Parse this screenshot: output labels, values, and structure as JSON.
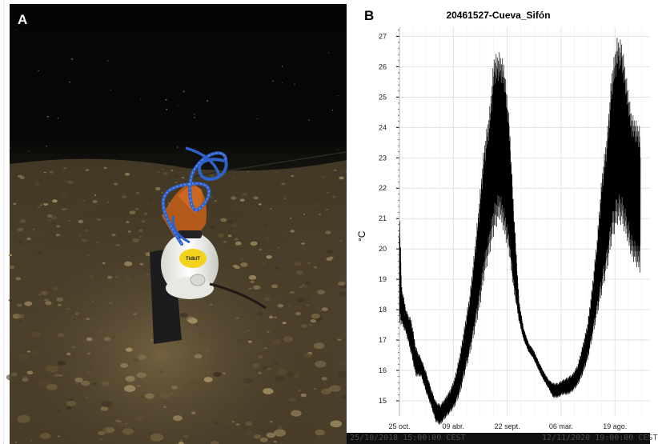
{
  "figure": {
    "panel_a": {
      "letter": "A",
      "logger_label": "TidbiT"
    },
    "panel_b": {
      "letter": "B",
      "footer_left": "25/10/2018 15:00:00 CEST",
      "footer_right": "12/11/2020 19:00:00 CEST"
    }
  },
  "chart_data": {
    "type": "line",
    "title": "20461527-Cueva_Sifón",
    "xlabel": "",
    "ylabel": "°C",
    "x_ticks": [
      "25 oct.",
      "09 abr.",
      "22 sept.",
      "06 mar.",
      "19 ago."
    ],
    "x_range": [
      "2018-10-25",
      "2020-11-12"
    ],
    "ylim": [
      14.5,
      27.3
    ],
    "y_ticks": [
      15,
      16,
      17,
      18,
      19,
      20,
      21,
      22,
      23,
      24,
      25,
      26,
      27
    ],
    "grid": true,
    "series": [
      {
        "color": "#000000",
        "x": [
          "2018-10-25",
          "2018-11-01",
          "2018-11-15",
          "2018-12-01",
          "2018-12-15",
          "2019-01-01",
          "2019-01-15",
          "2019-02-01",
          "2019-02-15",
          "2019-03-01",
          "2019-03-15",
          "2019-04-01",
          "2019-04-15",
          "2019-05-01",
          "2019-05-15",
          "2019-06-01",
          "2019-06-15",
          "2019-07-01",
          "2019-07-15",
          "2019-08-01",
          "2019-08-15",
          "2019-09-01",
          "2019-09-15",
          "2019-10-01",
          "2019-10-15",
          "2019-11-01",
          "2019-11-15",
          "2019-12-01",
          "2019-12-15",
          "2020-01-01",
          "2020-01-15",
          "2020-02-01",
          "2020-02-15",
          "2020-03-01",
          "2020-03-15",
          "2020-04-01",
          "2020-04-15",
          "2020-05-01",
          "2020-05-15",
          "2020-06-01",
          "2020-06-15",
          "2020-07-01",
          "2020-07-15",
          "2020-08-01",
          "2020-08-15",
          "2020-09-01",
          "2020-09-15",
          "2020-10-01",
          "2020-10-15",
          "2020-11-12"
        ],
        "y_low": [
          17.5,
          17.5,
          17.2,
          16.5,
          15.8,
          15.8,
          15.3,
          14.8,
          14.3,
          14.2,
          14.4,
          14.6,
          14.8,
          15.2,
          15.8,
          16.5,
          17.2,
          18.0,
          19.0,
          19.8,
          20.5,
          21.0,
          20.5,
          19.8,
          18.6,
          17.6,
          17.0,
          16.6,
          16.4,
          16.0,
          15.7,
          15.4,
          15.1,
          15.1,
          15.2,
          15.2,
          15.3,
          15.5,
          15.8,
          16.3,
          17.0,
          17.8,
          18.5,
          19.3,
          20.2,
          20.8,
          20.8,
          20.3,
          19.7,
          19.2
        ],
        "y_high": [
          21.5,
          18.8,
          18.0,
          17.7,
          16.8,
          16.4,
          16.0,
          15.4,
          15.0,
          14.9,
          15.1,
          15.4,
          15.8,
          16.6,
          17.5,
          18.6,
          20.0,
          21.8,
          23.5,
          24.7,
          26.5,
          26.6,
          26.3,
          24.5,
          21.5,
          18.3,
          17.4,
          16.9,
          16.7,
          16.3,
          16.0,
          15.7,
          15.6,
          15.6,
          15.7,
          15.8,
          15.9,
          16.2,
          16.8,
          17.6,
          18.8,
          20.5,
          22.5,
          24.0,
          26.0,
          27.1,
          27.0,
          25.7,
          24.6,
          24.1
        ]
      }
    ]
  }
}
